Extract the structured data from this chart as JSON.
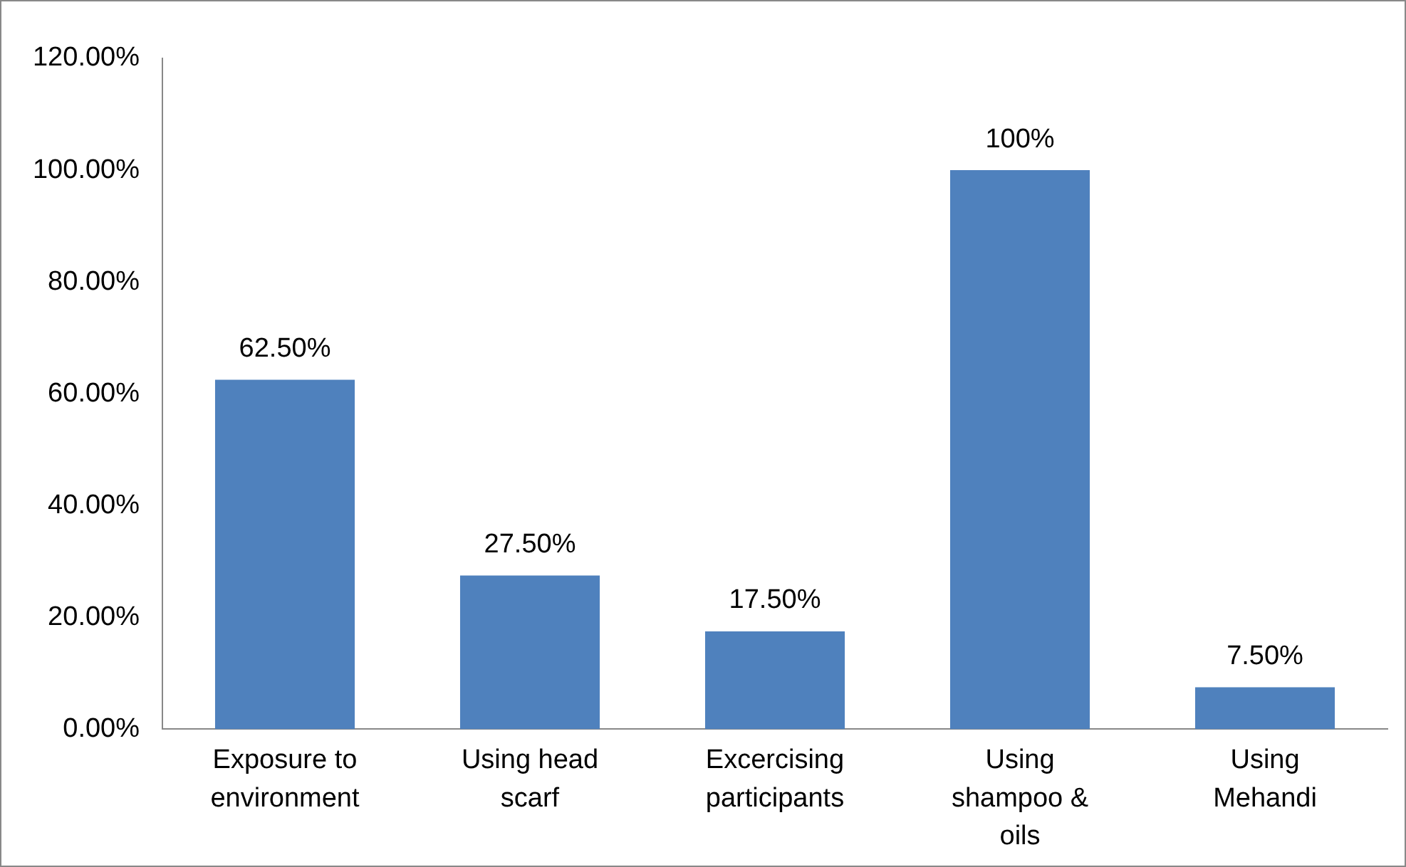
{
  "chart_data": {
    "type": "bar",
    "categories": [
      "Exposure to environment",
      "Using head scarf",
      "Excercising participants",
      "Using shampoo & oils",
      "Using Mehandi"
    ],
    "values": [
      62.5,
      27.5,
      17.5,
      100,
      7.5
    ],
    "value_labels": [
      "62.50%",
      "27.50%",
      "17.50%",
      "100%",
      "7.50%"
    ],
    "color": "#4f81bd",
    "ylim": [
      0,
      120
    ],
    "yticks": [
      {
        "value": 0,
        "label": "0.00%"
      },
      {
        "value": 20,
        "label": "20.00%"
      },
      {
        "value": 40,
        "label": "40.00%"
      },
      {
        "value": 60,
        "label": "60.00%"
      },
      {
        "value": 80,
        "label": "80.00%"
      },
      {
        "value": 100,
        "label": "100.00%"
      },
      {
        "value": 120,
        "label": "120.00%"
      }
    ],
    "grid": false,
    "legend": false
  }
}
